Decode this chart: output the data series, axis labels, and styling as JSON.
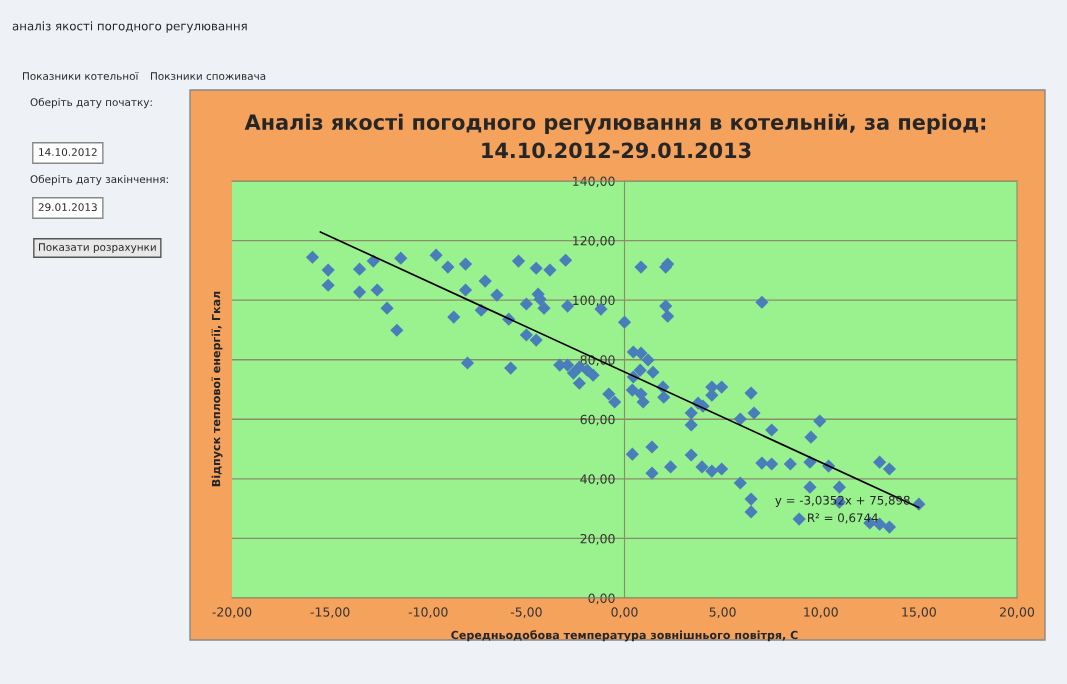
{
  "chart_data": {
    "type": "scatter",
    "title": "Аналіз якості погодного регулювання в котельній, за період:\n14.10.2012-29.01.2013",
    "xlabel": "Середньодобова температура зовнішнього повітря, С",
    "ylabel": "Відпуск теплової енергії, Гкал",
    "xlim": [
      -20,
      20
    ],
    "xticks": [
      {
        "value": -20,
        "label": "-20,00"
      },
      {
        "value": -15,
        "label": "-15,00"
      },
      {
        "value": -10,
        "label": "-10,00"
      },
      {
        "value": -5,
        "label": "-5,00"
      },
      {
        "value": 0,
        "label": "0,00"
      },
      {
        "value": 5,
        "label": "5,00"
      },
      {
        "value": 10,
        "label": "10,00"
      },
      {
        "value": 15,
        "label": "15,00"
      },
      {
        "value": 20,
        "label": "20,00"
      }
    ],
    "ylim": [
      0,
      140
    ],
    "yticks": [
      {
        "value": 0,
        "label": "0,00"
      },
      {
        "value": 20,
        "label": "20,00"
      },
      {
        "value": 40,
        "label": "40,00"
      },
      {
        "value": 60,
        "label": "60,00"
      },
      {
        "value": 80,
        "label": "80,00"
      },
      {
        "value": 100,
        "label": "100,00"
      },
      {
        "value": 120,
        "label": "120,00"
      },
      {
        "value": 140,
        "label": "140,00"
      }
    ],
    "grid": "y",
    "series": [
      {
        "color": "#4a7ebb",
        "marker": "diamond",
        "x": [
          -15.9,
          -15.1,
          -15.1,
          -13.5,
          -13.5,
          -12.8,
          -12.6,
          -12.1,
          -11.6,
          -11.4,
          -9.6,
          -9.0,
          -8.1,
          -8.1,
          -8.7,
          -8.0,
          -7.1,
          -7.3,
          -6.5,
          -5.9,
          -5.8,
          -5.4,
          -5.0,
          -5.0,
          -4.5,
          -4.5,
          -4.4,
          -4.3,
          -4.1,
          -3.8,
          -3.0,
          -2.9,
          -3.3,
          -2.9,
          -2.6,
          -2.3,
          -2.3,
          -1.9,
          -1.6,
          -1.2,
          -0.8,
          -0.5,
          0.0,
          0.84,
          2.1,
          2.2,
          2.1,
          2.2,
          7.0,
          0.45,
          0.84,
          1.2,
          1.45,
          0.8,
          0.45,
          0.4,
          0.84,
          0.95,
          1.96,
          2.0,
          3.4,
          3.4,
          3.75,
          4.0,
          4.45,
          4.45,
          4.95,
          5.9,
          6.45,
          6.6,
          7.5,
          9.5,
          9.95,
          0.4,
          1.4,
          1.4,
          2.35,
          3.4,
          3.95,
          4.45,
          4.95,
          7.0,
          7.5,
          8.45,
          9.45,
          10.4,
          13.0,
          13.5,
          5.9,
          6.45,
          6.45,
          8.9,
          9.45,
          10.95,
          10.95,
          12.5,
          13.0,
          13.5,
          15.0
        ],
        "values": [
          114.4,
          110.1,
          105.0,
          110.4,
          102.7,
          113.1,
          103.4,
          97.3,
          89.9,
          114.1,
          115.1,
          111.1,
          112.1,
          103.4,
          94.3,
          78.9,
          106.4,
          96.6,
          101.7,
          93.6,
          77.2,
          113.1,
          98.7,
          88.3,
          110.7,
          86.6,
          102.0,
          100.3,
          97.3,
          110.1,
          113.4,
          98.0,
          78.2,
          78.2,
          75.5,
          72.1,
          77.5,
          76.5,
          74.8,
          97.0,
          68.5,
          65.8,
          92.6,
          111.1,
          111.1,
          112.1,
          98.0,
          94.6,
          99.3,
          82.6,
          82.2,
          79.9,
          75.8,
          76.5,
          74.2,
          69.8,
          68.5,
          65.8,
          70.8,
          67.4,
          62.1,
          58.1,
          65.4,
          64.4,
          70.8,
          68.1,
          70.8,
          60.1,
          68.8,
          62.1,
          56.4,
          54.0,
          59.4,
          48.3,
          50.7,
          41.9,
          44.0,
          48.0,
          44.0,
          42.6,
          43.3,
          45.3,
          45.0,
          45.0,
          45.6,
          44.3,
          45.6,
          43.3,
          38.6,
          33.2,
          28.9,
          26.5,
          37.2,
          37.2,
          32.2,
          25.2,
          24.8,
          23.8,
          31.5
        ]
      },
      {
        "type": "line",
        "color": "#000000",
        "x": [
          -15.5,
          15.0
        ],
        "values": [
          122.9,
          30.4
        ]
      }
    ],
    "annotations": [
      "y = -3,0352x + 75,898",
      "R² = 0,6744",
      "аналіз якості погодного регулювання",
      "Показники котельної",
      "Покзники споживача",
      "Оберіть дату початку:",
      "14.10.2012",
      "Оберіть дату закінчення:",
      "29.01.2013",
      "Показати розрахунки"
    ]
  }
}
